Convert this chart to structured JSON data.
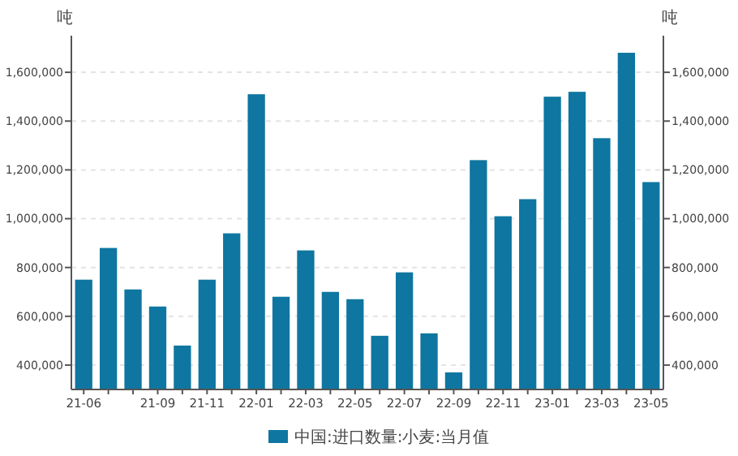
{
  "chart_data": {
    "type": "bar",
    "ylabel": "吨",
    "y2label": "吨",
    "categories": [
      "21-06",
      null,
      null,
      "21-09",
      null,
      "21-11",
      null,
      "22-01",
      null,
      "22-03",
      null,
      "22-05",
      null,
      "22-07",
      null,
      "22-09",
      null,
      "22-11",
      null,
      "23-01",
      null,
      "23-03",
      null,
      "23-05"
    ],
    "series": [
      {
        "name": "中国:进口数量:小麦:当月值",
        "color": "#0e76a0",
        "values": [
          750000,
          880000,
          710000,
          640000,
          480000,
          750000,
          940000,
          1510000,
          680000,
          870000,
          700000,
          670000,
          520000,
          780000,
          530000,
          370000,
          1240000,
          1010000,
          1080000,
          1500000,
          1520000,
          1330000,
          1680000,
          1150000
        ]
      }
    ],
    "ylim": [
      300000,
      1750000
    ],
    "yticks": [
      {
        "value": 400000,
        "label": "400,000"
      },
      {
        "value": 600000,
        "label": "600,000"
      },
      {
        "value": 800000,
        "label": "800,000"
      },
      {
        "value": 1000000,
        "label": "1,000,000"
      },
      {
        "value": 1200000,
        "label": "1,200,000"
      },
      {
        "value": 1400000,
        "label": "1,400,000"
      },
      {
        "value": 1600000,
        "label": "1,600,000"
      }
    ],
    "y2lim": [
      300000,
      1750000
    ],
    "y2ticks": [
      {
        "value": 400000,
        "label": "400,000"
      },
      {
        "value": 600000,
        "label": "600,000"
      },
      {
        "value": 800000,
        "label": "800,000"
      },
      {
        "value": 1000000,
        "label": "1,000,000"
      },
      {
        "value": 1200000,
        "label": "1,200,000"
      },
      {
        "value": 1400000,
        "label": "1,400,000"
      },
      {
        "value": 1600000,
        "label": "1,600,000"
      }
    ],
    "grid": "y",
    "legend": "bottom"
  }
}
